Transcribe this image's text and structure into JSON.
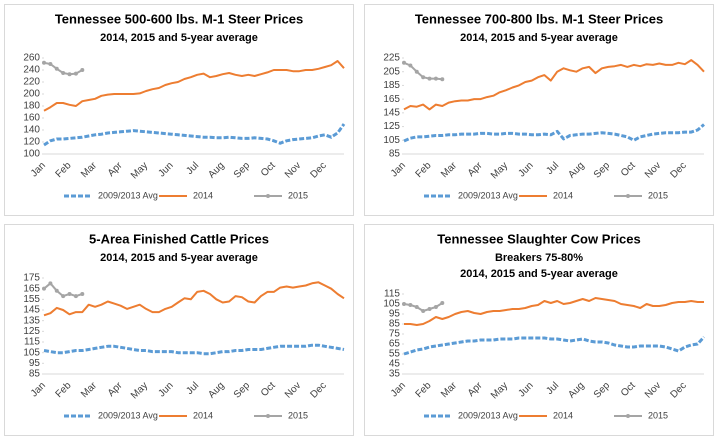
{
  "chart_data": [
    {
      "type": "line",
      "title": "Tennessee 500-600 lbs. M-1 Steer Prices",
      "subtitle": [
        "2014, 2015 and 5-year average"
      ],
      "categories": [
        "Jan",
        null,
        null,
        null,
        "Feb",
        null,
        null,
        null,
        "Mar",
        null,
        null,
        null,
        "Apr",
        null,
        null,
        null,
        "May",
        null,
        null,
        null,
        "Jun",
        null,
        null,
        null,
        "Jul",
        null,
        null,
        null,
        "Aug",
        null,
        null,
        null,
        "Sep",
        null,
        null,
        null,
        "Oct",
        null,
        null,
        null,
        "Nov",
        null,
        null,
        null,
        "Dec",
        null,
        null,
        null
      ],
      "ylim": [
        100,
        260
      ],
      "yticks": [
        100,
        120,
        140,
        160,
        180,
        200,
        220,
        240,
        260
      ],
      "series": [
        {
          "name": "2009/2013 Avg",
          "color": "#5b9bd5",
          "dashed": true,
          "values": [
            115,
            122,
            125,
            125,
            126,
            127,
            128,
            130,
            132,
            133,
            135,
            136,
            137,
            138,
            139,
            138,
            137,
            136,
            135,
            134,
            133,
            132,
            131,
            130,
            129,
            128,
            128,
            127,
            127,
            128,
            127,
            126,
            126,
            127,
            126,
            125,
            122,
            118,
            122,
            124,
            125,
            126,
            127,
            130,
            132,
            128,
            135,
            150
          ]
        },
        {
          "name": "2014",
          "color": "#ed7d31",
          "values": [
            172,
            178,
            185,
            185,
            182,
            180,
            188,
            190,
            192,
            197,
            199,
            200,
            200,
            200,
            200,
            201,
            205,
            208,
            210,
            215,
            218,
            220,
            225,
            228,
            232,
            234,
            228,
            230,
            233,
            235,
            232,
            230,
            232,
            230,
            233,
            236,
            240,
            240,
            240,
            238,
            238,
            240,
            240,
            242,
            245,
            248,
            255,
            243
          ]
        },
        {
          "name": "2015",
          "color": "#a5a5a5",
          "marker": true,
          "values": [
            252,
            250,
            242,
            235,
            233,
            234,
            240,
            null,
            null,
            null,
            null,
            null,
            null,
            null,
            null,
            null,
            null,
            null,
            null,
            null,
            null,
            null,
            null,
            null,
            null,
            null,
            null,
            null,
            null,
            null,
            null,
            null,
            null,
            null,
            null,
            null,
            null,
            null,
            null,
            null,
            null,
            null,
            null,
            null,
            null,
            null,
            null,
            null
          ]
        }
      ]
    },
    {
      "type": "line",
      "title": "Tennessee 700-800 lbs. M-1 Steer Prices",
      "subtitle": [
        "2014, 2015 and 5-year average"
      ],
      "categories": [
        "Jan",
        null,
        null,
        null,
        "Feb",
        null,
        null,
        null,
        "Mar",
        null,
        null,
        null,
        "Apr",
        null,
        null,
        null,
        "May",
        null,
        null,
        null,
        "Jun",
        null,
        null,
        null,
        "Jul",
        null,
        null,
        null,
        "Aug",
        null,
        null,
        null,
        "Sep",
        null,
        null,
        null,
        "Oct",
        null,
        null,
        null,
        "Nov",
        null,
        null,
        null,
        "Dec",
        null,
        null,
        null
      ],
      "ylim": [
        85,
        225
      ],
      "yticks": [
        85,
        105,
        125,
        145,
        165,
        185,
        205,
        225
      ],
      "series": [
        {
          "name": "2009/2013 Avg",
          "color": "#5b9bd5",
          "dashed": true,
          "values": [
            104,
            108,
            110,
            110,
            111,
            112,
            112,
            113,
            113,
            114,
            114,
            114,
            115,
            115,
            114,
            114,
            115,
            115,
            114,
            114,
            113,
            113,
            114,
            113,
            118,
            107,
            112,
            113,
            114,
            114,
            115,
            116,
            115,
            114,
            112,
            110,
            105,
            110,
            112,
            114,
            115,
            116,
            116,
            116,
            117,
            117,
            120,
            128
          ]
        },
        {
          "name": "2014",
          "color": "#ed7d31",
          "values": [
            150,
            155,
            154,
            157,
            150,
            157,
            155,
            160,
            162,
            163,
            163,
            165,
            165,
            168,
            170,
            175,
            178,
            182,
            185,
            190,
            192,
            197,
            200,
            192,
            205,
            210,
            207,
            205,
            210,
            212,
            203,
            210,
            212,
            213,
            215,
            212,
            215,
            213,
            216,
            215,
            217,
            215,
            215,
            218,
            216,
            222,
            215,
            205
          ]
        },
        {
          "name": "2015",
          "color": "#a5a5a5",
          "marker": true,
          "values": [
            218,
            214,
            205,
            197,
            195,
            195,
            194,
            null,
            null,
            null,
            null,
            null,
            null,
            null,
            null,
            null,
            null,
            null,
            null,
            null,
            null,
            null,
            null,
            null,
            null,
            null,
            null,
            null,
            null,
            null,
            null,
            null,
            null,
            null,
            null,
            null,
            null,
            null,
            null,
            null,
            null,
            null,
            null,
            null,
            null,
            null,
            null,
            null
          ]
        }
      ]
    },
    {
      "type": "line",
      "title": "5-Area Finished Cattle Prices",
      "subtitle": [
        "2014, 2015 and 5-year average"
      ],
      "categories": [
        "Jan",
        null,
        null,
        null,
        "Feb",
        null,
        null,
        null,
        "Mar",
        null,
        null,
        null,
        "Apr",
        null,
        null,
        null,
        "May",
        null,
        null,
        null,
        "Jun",
        null,
        null,
        null,
        "Jul",
        null,
        null,
        null,
        "Aug",
        null,
        null,
        null,
        "Sep",
        null,
        null,
        null,
        "Oct",
        null,
        null,
        null,
        "Nov",
        null,
        null,
        null,
        "Dec",
        null,
        null,
        null
      ],
      "ylim": [
        85,
        175
      ],
      "yticks": [
        85,
        95,
        105,
        115,
        125,
        135,
        145,
        155,
        165,
        175
      ],
      "series": [
        {
          "name": "2009/2013 Avg",
          "color": "#5b9bd5",
          "dashed": true,
          "values": [
            107,
            106,
            105,
            105,
            106,
            107,
            107,
            108,
            109,
            110,
            111,
            111,
            110,
            109,
            108,
            107,
            107,
            106,
            106,
            106,
            106,
            105,
            105,
            105,
            105,
            104,
            104,
            105,
            106,
            106,
            107,
            107,
            108,
            108,
            108,
            109,
            110,
            111,
            111,
            111,
            111,
            111,
            112,
            112,
            111,
            110,
            109,
            108
          ]
        },
        {
          "name": "2014",
          "color": "#ed7d31",
          "values": [
            140,
            142,
            147,
            145,
            141,
            143,
            143,
            150,
            148,
            150,
            153,
            151,
            149,
            146,
            148,
            150,
            146,
            143,
            143,
            146,
            148,
            152,
            156,
            155,
            162,
            163,
            160,
            155,
            152,
            153,
            158,
            157,
            153,
            152,
            158,
            162,
            162,
            166,
            167,
            166,
            167,
            168,
            170,
            171,
            168,
            165,
            160,
            156
          ]
        },
        {
          "name": "2015",
          "color": "#a5a5a5",
          "marker": true,
          "values": [
            165,
            170,
            163,
            158,
            160,
            158,
            160,
            null,
            null,
            null,
            null,
            null,
            null,
            null,
            null,
            null,
            null,
            null,
            null,
            null,
            null,
            null,
            null,
            null,
            null,
            null,
            null,
            null,
            null,
            null,
            null,
            null,
            null,
            null,
            null,
            null,
            null,
            null,
            null,
            null,
            null,
            null,
            null,
            null,
            null,
            null,
            null,
            null
          ]
        }
      ]
    },
    {
      "type": "line",
      "title": "Tennessee Slaughter Cow Prices",
      "subtitle": [
        "Breakers 75-80%",
        "2014, 2015 and 5-year average"
      ],
      "categories": [
        "Jan",
        null,
        null,
        null,
        "Feb",
        null,
        null,
        null,
        "Mar",
        null,
        null,
        null,
        "Apr",
        null,
        null,
        null,
        "May",
        null,
        null,
        null,
        "Jun",
        null,
        null,
        null,
        "Jul",
        null,
        null,
        null,
        "Aug",
        null,
        null,
        null,
        "Sep",
        null,
        null,
        null,
        "Oct",
        null,
        null,
        null,
        "Nov",
        null,
        null,
        null,
        "Dec",
        null,
        null,
        null
      ],
      "ylim": [
        35,
        115
      ],
      "yticks": [
        35,
        45,
        55,
        65,
        75,
        85,
        95,
        105,
        115
      ],
      "series": [
        {
          "name": "2009/2013 Avg",
          "color": "#5b9bd5",
          "dashed": true,
          "values": [
            55,
            57,
            59,
            60,
            62,
            63,
            64,
            65,
            66,
            67,
            68,
            68,
            69,
            69,
            69,
            70,
            70,
            70,
            71,
            71,
            71,
            71,
            71,
            70,
            70,
            69,
            68,
            69,
            70,
            68,
            67,
            67,
            66,
            64,
            63,
            62,
            62,
            63,
            63,
            63,
            63,
            62,
            60,
            58,
            62,
            64,
            65,
            72
          ]
        },
        {
          "name": "2014",
          "color": "#ed7d31",
          "values": [
            85,
            85,
            84,
            85,
            88,
            92,
            90,
            92,
            95,
            97,
            98,
            96,
            95,
            97,
            98,
            98,
            99,
            100,
            100,
            101,
            103,
            104,
            108,
            106,
            108,
            105,
            106,
            108,
            110,
            108,
            111,
            110,
            109,
            108,
            105,
            104,
            103,
            101,
            105,
            103,
            103,
            104,
            106,
            107,
            107,
            108,
            107,
            107
          ]
        },
        {
          "name": "2015",
          "color": "#a5a5a5",
          "marker": true,
          "values": [
            105,
            104,
            102,
            98,
            100,
            102,
            106,
            null,
            null,
            null,
            null,
            null,
            null,
            null,
            null,
            null,
            null,
            null,
            null,
            null,
            null,
            null,
            null,
            null,
            null,
            null,
            null,
            null,
            null,
            null,
            null,
            null,
            null,
            null,
            null,
            null,
            null,
            null,
            null,
            null,
            null,
            null,
            null,
            null,
            null,
            null,
            null,
            null
          ]
        }
      ]
    }
  ]
}
